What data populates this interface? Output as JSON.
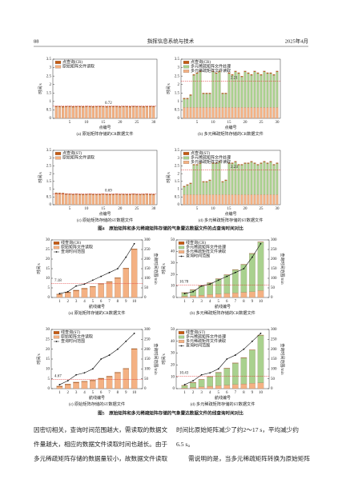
{
  "header": {
    "page": "88",
    "journal": "指挥信息系统与技术",
    "date": "2025年4月"
  },
  "figures": [
    {
      "caption": "图4　原始矩阵和多元稀疏矩阵存储的气象雷达数据文件的点查询时间对比"
    },
    {
      "caption": "图5　原始矩阵和多元稀疏矩阵存储的气象雷达数据文件的线查询时间对比"
    }
  ],
  "body": {
    "left": [
      "因密切相关，查询时间范围越大，需读取的数据文",
      "件量越大，相应的数据文件读取时间也越长。由于",
      "多元稀疏矩阵存储的数据量较小，故数据文件读取"
    ],
    "right": [
      "时间比原始矩阵减少了约2～17 s，平均减少约",
      "6.5 s。",
      "　　需说明的是，当多元稀疏矩阵转换为原始矩阵"
    ]
  },
  "chart_data": [
    {
      "type": "bar",
      "caption": "(a) 原始矩阵存储的CR数据文件",
      "x_label": "点编号",
      "y_label": "时间/s",
      "x": [
        1,
        2,
        3,
        4,
        5,
        6,
        7,
        8,
        9,
        10,
        11,
        12,
        13,
        14,
        15,
        16,
        17,
        18,
        19,
        20,
        21,
        22,
        23,
        24,
        25,
        26,
        27,
        28,
        29,
        30
      ],
      "xlim": [
        0,
        31
      ],
      "xticks": [
        5,
        10,
        15,
        20,
        25,
        30
      ],
      "ylim": [
        0,
        3.5
      ],
      "yticks": [
        0,
        0.5,
        1,
        1.5,
        2,
        2.5,
        3,
        3.5
      ],
      "reference": 0.72,
      "series": [
        {
          "name": "点查询(CR)",
          "color": "#c55a11",
          "values": [
            0.05,
            0.05,
            0.05,
            0.05,
            0.05,
            0.05,
            0.05,
            0.05,
            0.05,
            0.05,
            0.05,
            0.05,
            0.05,
            0.05,
            0.05,
            0.05,
            0.05,
            0.05,
            0.05,
            0.05,
            0.05,
            0.05,
            0.05,
            0.05,
            0.05,
            0.05,
            0.05,
            0.05,
            0.05,
            0.05
          ]
        },
        {
          "name": "原始矩阵文件读取",
          "color": "#f4b183",
          "values": [
            0.68,
            0.67,
            0.66,
            0.67,
            0.68,
            0.66,
            0.67,
            0.67,
            0.66,
            0.68,
            0.67,
            0.66,
            0.67,
            0.68,
            0.67,
            0.66,
            0.67,
            0.67,
            0.68,
            0.66,
            0.67,
            0.67,
            0.66,
            0.68,
            0.67,
            0.67,
            0.66,
            0.67,
            0.68,
            0.67
          ]
        }
      ]
    },
    {
      "type": "bar",
      "caption": "(b) 多元稀疏矩阵存储的CR数据文件",
      "x_label": "点编号",
      "y_label": "时间/s",
      "x": [
        1,
        2,
        3,
        4,
        5,
        6,
        7,
        8,
        9,
        10,
        11,
        12,
        13,
        14,
        15,
        16,
        17,
        18,
        19,
        20,
        21,
        22,
        23,
        24,
        25,
        26,
        27,
        28,
        29,
        30
      ],
      "xlim": [
        0,
        31
      ],
      "xticks": [
        5,
        10,
        15,
        20,
        25,
        30
      ],
      "ylim": [
        0,
        3.5
      ],
      "yticks": [
        0,
        0.5,
        1,
        1.5,
        2,
        2.5,
        3,
        3.5
      ],
      "reference": 2.21,
      "series": [
        {
          "name": "点查询(CR)",
          "color": "#c55a11",
          "values": [
            0.05,
            0.05,
            0.05,
            0.05,
            0.05,
            0.05,
            0.05,
            0.05,
            0.05,
            0.05,
            0.05,
            0.05,
            0.05,
            0.05,
            0.05,
            0.05,
            0.05,
            0.05,
            0.05,
            0.05,
            0.05,
            0.05,
            0.05,
            0.05,
            0.05,
            0.05,
            0.05,
            0.05,
            0.05,
            0.05
          ]
        },
        {
          "name": "多元稀疏矩阵文件处理",
          "color": "#a9d18e",
          "values": [
            0.5,
            0.5,
            0.7,
            1.9,
            2.0,
            2.1,
            0.8,
            0.8,
            0.8,
            2.1,
            2.0,
            2.1,
            0.8,
            0.8,
            2.0,
            1.9,
            2.1,
            2.0,
            1.8,
            2.1,
            2.0,
            1.9,
            2.1,
            2.0,
            1.9,
            2.1,
            2.0,
            2.0,
            1.9,
            2.1
          ]
        },
        {
          "name": "多元稀疏矩阵文件读取",
          "color": "#f4b183",
          "values": [
            0.65,
            0.65,
            0.65,
            0.65,
            0.65,
            0.65,
            0.65,
            0.65,
            0.65,
            0.65,
            0.65,
            0.65,
            0.65,
            0.65,
            0.65,
            0.65,
            0.65,
            0.65,
            0.65,
            0.65,
            0.65,
            0.65,
            0.65,
            0.65,
            0.65,
            0.65,
            0.65,
            0.65,
            0.65,
            0.65
          ]
        }
      ]
    },
    {
      "type": "bar",
      "caption": "(c) 原始矩阵存储的ST数据文件",
      "x_label": "点编号",
      "y_label": "时间/s",
      "x": [
        1,
        2,
        3,
        4,
        5,
        6,
        7,
        8,
        9,
        10,
        11,
        12,
        13,
        14,
        15,
        16,
        17,
        18,
        19,
        20,
        21,
        22,
        23,
        24,
        25,
        26,
        27,
        28,
        29,
        30
      ],
      "xlim": [
        0,
        31
      ],
      "xticks": [
        5,
        10,
        15,
        20,
        25,
        30
      ],
      "ylim": [
        0,
        3.5
      ],
      "yticks": [
        0,
        0.5,
        1,
        1.5,
        2,
        2.5,
        3,
        3.5
      ],
      "reference": 0.69,
      "series": [
        {
          "name": "点查询(ST)",
          "color": "#c55a11",
          "values": [
            0.05,
            0.05,
            0.05,
            0.05,
            0.05,
            0.05,
            0.05,
            0.05,
            0.05,
            0.05,
            0.05,
            0.05,
            0.05,
            0.05,
            0.05,
            0.05,
            0.05,
            0.05,
            0.05,
            0.05,
            0.05,
            0.05,
            0.05,
            0.05,
            0.05,
            0.05,
            0.05,
            0.05,
            0.05,
            0.05
          ]
        },
        {
          "name": "原始矩阵文件读取",
          "color": "#f4b183",
          "values": [
            0.72,
            0.71,
            0.7,
            0.66,
            0.65,
            0.64,
            0.65,
            0.64,
            0.63,
            0.64,
            0.65,
            0.64,
            0.63,
            0.64,
            0.65,
            0.64,
            0.63,
            0.64,
            0.65,
            0.64,
            0.64,
            0.63,
            0.64,
            0.65,
            0.64,
            0.63,
            0.64,
            0.65,
            0.64,
            0.63
          ]
        }
      ]
    },
    {
      "type": "bar",
      "caption": "(d) 多元稀疏矩阵存储的ST数据文件",
      "x_label": "点编号",
      "y_label": "时间/s",
      "x": [
        1,
        2,
        3,
        4,
        5,
        6,
        7,
        8,
        9,
        10,
        11,
        12,
        13,
        14,
        15,
        16,
        17,
        18,
        19,
        20,
        21,
        22,
        23,
        24,
        25,
        26,
        27,
        28,
        29,
        30
      ],
      "xlim": [
        0,
        31
      ],
      "xticks": [
        5,
        10,
        15,
        20,
        25,
        30
      ],
      "ylim": [
        0,
        3.5
      ],
      "yticks": [
        0,
        0.5,
        1,
        1.5,
        2,
        2.5,
        3,
        3.5
      ],
      "reference": 2.23,
      "series": [
        {
          "name": "点查询(ST)",
          "color": "#c55a11",
          "values": [
            0.05,
            0.05,
            0.05,
            0.05,
            0.05,
            0.05,
            0.05,
            0.05,
            0.05,
            0.05,
            0.05,
            0.05,
            0.05,
            0.05,
            0.05,
            0.05,
            0.05,
            0.05,
            0.05,
            0.05,
            0.05,
            0.05,
            0.05,
            0.05,
            0.05,
            0.05,
            0.05,
            0.05,
            0.05,
            0.05
          ]
        },
        {
          "name": "多元稀疏矩阵文件处理",
          "color": "#a9d18e",
          "values": [
            0.5,
            0.6,
            0.7,
            1.9,
            1.9,
            2.0,
            0.8,
            0.8,
            0.9,
            2.0,
            2.0,
            2.1,
            0.8,
            0.9,
            2.0,
            2.0,
            2.1,
            1.9,
            1.9,
            2.0,
            2.0,
            2.1,
            2.0,
            1.9,
            2.0,
            2.1,
            2.0,
            2.1,
            1.9,
            2.0
          ]
        },
        {
          "name": "多元稀疏矩阵文件读取",
          "color": "#f4b183",
          "values": [
            0.65,
            0.65,
            0.65,
            0.65,
            0.65,
            0.65,
            0.65,
            0.65,
            0.65,
            0.65,
            0.65,
            0.65,
            0.65,
            0.65,
            0.65,
            0.65,
            0.65,
            0.65,
            0.65,
            0.65,
            0.65,
            0.65,
            0.65,
            0.65,
            0.65,
            0.65,
            0.65,
            0.65,
            0.65,
            0.65
          ]
        }
      ]
    },
    {
      "type": "bar_line",
      "caption": "(a) 原始矩阵存储的CR数据文件",
      "x_label": "航线编号",
      "y_label": "时间/s",
      "y2_label": "查询时间范围/min",
      "x": [
        1,
        2,
        3,
        4,
        5,
        6,
        7,
        8,
        9,
        10
      ],
      "xlim": [
        0,
        11
      ],
      "xticks": [
        1,
        2,
        3,
        4,
        5,
        6,
        7,
        8,
        9,
        10
      ],
      "ylim": [
        0,
        30
      ],
      "yticks": [
        0,
        5,
        10,
        15,
        20,
        25,
        30
      ],
      "y2lim": [
        0,
        300
      ],
      "y2ticks": [
        0,
        50,
        100,
        150,
        200,
        250,
        300
      ],
      "reference": 7.18,
      "series": [
        {
          "name": "线查询(CR)",
          "color": "#c55a11",
          "values": [
            0.3,
            0.3,
            0.3,
            0.3,
            0.3,
            0.3,
            0.3,
            0.3,
            0.3,
            0.3
          ]
        },
        {
          "name": "原始矩阵文件读取",
          "color": "#f4b183",
          "values": [
            1.5,
            2.5,
            3.5,
            4.5,
            5.5,
            7,
            8,
            10,
            15,
            25
          ]
        },
        {
          "name": "查询时间范围",
          "color": "#111111",
          "kind": "line",
          "axis": "y2",
          "values": [
            20,
            30,
            60,
            70,
            90,
            110,
            130,
            150,
            210,
            280
          ]
        }
      ]
    },
    {
      "type": "bar_line",
      "caption": "(b) 多元稀疏矩阵存储的CR数据文件",
      "x_label": "航线编号",
      "y_label": "时间/s",
      "y2_label": "查询时间范围/min",
      "x": [
        1,
        2,
        3,
        4,
        5,
        6,
        7,
        8,
        9,
        10
      ],
      "xlim": [
        0,
        11
      ],
      "xticks": [
        1,
        2,
        3,
        4,
        5,
        6,
        7,
        8,
        9,
        10
      ],
      "ylim": [
        0,
        50
      ],
      "yticks": [
        0,
        10,
        20,
        30,
        40,
        50
      ],
      "y2lim": [
        0,
        300
      ],
      "y2ticks": [
        0,
        50,
        100,
        150,
        200,
        250,
        300
      ],
      "reference": 10.78,
      "series": [
        {
          "name": "线查询(CR)",
          "color": "#c55a11",
          "values": [
            0.3,
            0.3,
            0.3,
            0.3,
            0.3,
            0.3,
            0.3,
            0.3,
            0.3,
            0.3
          ]
        },
        {
          "name": "多元稀疏矩阵文件处理",
          "color": "#a9d18e",
          "values": [
            3,
            5,
            8,
            10,
            13,
            16,
            20,
            24,
            33,
            42
          ]
        },
        {
          "name": "多元稀疏矩阵文件读取",
          "color": "#f4b183",
          "values": [
            1,
            1.5,
            2,
            2.5,
            3,
            3.5,
            4,
            4.5,
            5,
            6
          ]
        },
        {
          "name": "查询时间范围",
          "color": "#111111",
          "kind": "line",
          "axis": "y2",
          "values": [
            20,
            30,
            60,
            70,
            90,
            110,
            130,
            150,
            210,
            280
          ]
        }
      ]
    },
    {
      "type": "bar_line",
      "caption": "(c) 原始矩阵存储的ST数据文件",
      "x_label": "航线编号",
      "y_label": "时间/s",
      "y2_label": "查询时间范围/min",
      "x": [
        1,
        2,
        3,
        4,
        5,
        6,
        7,
        8,
        9,
        10
      ],
      "xlim": [
        0,
        11
      ],
      "xticks": [
        1,
        2,
        3,
        4,
        5,
        6,
        7,
        8,
        9,
        10
      ],
      "ylim": [
        0,
        30
      ],
      "yticks": [
        0,
        5,
        10,
        15,
        20,
        25,
        30
      ],
      "y2lim": [
        0,
        300
      ],
      "y2ticks": [
        0,
        50,
        100,
        150,
        200,
        250,
        300
      ],
      "reference": 4.67,
      "series": [
        {
          "name": "线查询(ST)",
          "color": "#c55a11",
          "values": [
            0.3,
            0.3,
            0.3,
            0.3,
            0.3,
            0.3,
            0.3,
            0.3,
            0.3,
            0.3
          ]
        },
        {
          "name": "原始矩阵文件读取",
          "color": "#f4b183",
          "values": [
            1,
            2,
            3,
            3.5,
            4,
            5,
            6,
            8,
            10,
            20
          ]
        },
        {
          "name": "查询时间范围",
          "color": "#111111",
          "kind": "line",
          "axis": "y2",
          "values": [
            20,
            40,
            70,
            80,
            100,
            150,
            170,
            200,
            240,
            280
          ]
        }
      ]
    },
    {
      "type": "bar_line",
      "caption": "(d) 多元稀疏矩阵存储的ST数据文件",
      "x_label": "航线编号",
      "y_label": "时间/s",
      "y2_label": "查询时间范围/min",
      "x": [
        1,
        2,
        3,
        4,
        5,
        6,
        7,
        8,
        9,
        10
      ],
      "xlim": [
        0,
        11
      ],
      "xticks": [
        1,
        2,
        3,
        4,
        5,
        6,
        7,
        8,
        9,
        10
      ],
      "ylim": [
        0,
        50
      ],
      "yticks": [
        0,
        10,
        20,
        30,
        40,
        50
      ],
      "y2lim": [
        0,
        300
      ],
      "y2ticks": [
        0,
        50,
        100,
        150,
        200,
        250,
        300
      ],
      "reference": 10.43,
      "series": [
        {
          "name": "线查询(ST)",
          "color": "#c55a11",
          "values": [
            0.3,
            0.3,
            0.3,
            0.3,
            0.3,
            0.3,
            0.3,
            0.3,
            0.3,
            0.3
          ]
        },
        {
          "name": "多元稀疏矩阵文件处理",
          "color": "#a9d18e",
          "values": [
            2,
            4,
            6,
            8,
            11,
            14,
            18,
            22,
            28,
            40
          ]
        },
        {
          "name": "多元稀疏矩阵文件读取",
          "color": "#f4b183",
          "values": [
            0.5,
            1,
            1.5,
            2,
            2.5,
            3,
            3.5,
            4,
            4.5,
            5
          ]
        },
        {
          "name": "查询时间范围",
          "color": "#111111",
          "kind": "line",
          "axis": "y2",
          "values": [
            20,
            40,
            70,
            80,
            100,
            150,
            170,
            200,
            240,
            280
          ]
        }
      ]
    }
  ]
}
